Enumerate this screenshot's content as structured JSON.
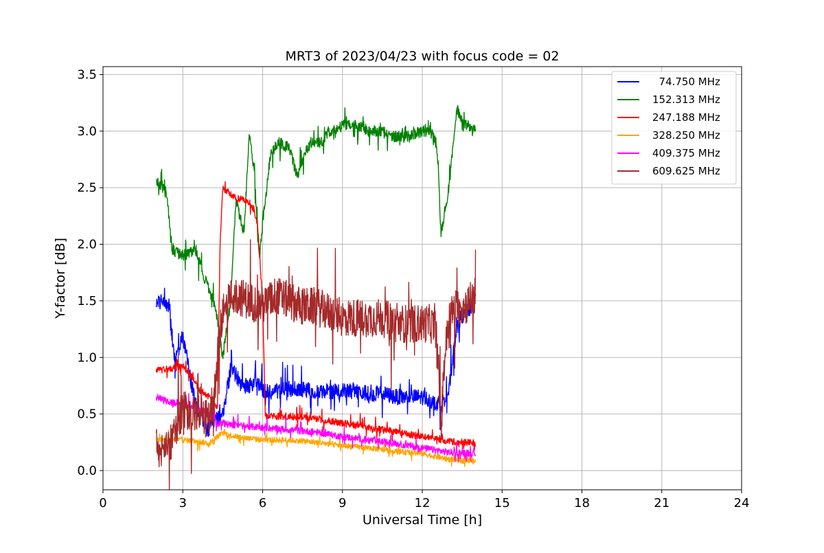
{
  "chart_data": {
    "type": "line",
    "title": "MRT3 of 2023/04/23 with focus code = 02",
    "xlabel": "Universal Time [h]",
    "ylabel": "Y-factor [dB]",
    "xlim": [
      0,
      24
    ],
    "ylim": [
      -0.17,
      3.57
    ],
    "xticks": [
      0,
      3,
      6,
      9,
      12,
      15,
      18,
      21,
      24
    ],
    "yticks": [
      0.0,
      0.5,
      1.0,
      1.5,
      2.0,
      2.5,
      3.0,
      3.5
    ],
    "xtick_labels": [
      "0",
      "3",
      "6",
      "9",
      "12",
      "15",
      "18",
      "21",
      "24"
    ],
    "ytick_labels": [
      "0.0",
      "0.5",
      "1.0",
      "1.5",
      "2.0",
      "2.5",
      "3.0",
      "3.5"
    ],
    "grid": true,
    "legend_position": "top-right",
    "series": [
      {
        "name": "  74.750 MHz",
        "color": "#0000ff",
        "noise": 0.07,
        "x": [
          2.0,
          2.2,
          2.5,
          2.6,
          2.7,
          3.0,
          3.3,
          3.5,
          3.7,
          3.9,
          4.2,
          4.5,
          4.8,
          5.0,
          5.2,
          5.5,
          5.8,
          6.0,
          6.5,
          7.0,
          7.5,
          8.0,
          8.5,
          9.0,
          9.5,
          10.0,
          10.5,
          11.0,
          11.5,
          12.0,
          12.5,
          12.7,
          13.0,
          13.3,
          13.6,
          13.9,
          14.0
        ],
        "y": [
          1.48,
          1.5,
          1.45,
          1.15,
          0.95,
          1.2,
          0.8,
          0.55,
          0.5,
          0.35,
          0.45,
          0.5,
          0.9,
          0.85,
          0.75,
          0.75,
          0.8,
          0.7,
          0.7,
          0.72,
          0.72,
          0.7,
          0.7,
          0.7,
          0.7,
          0.68,
          0.68,
          0.65,
          0.65,
          0.65,
          0.6,
          0.6,
          0.7,
          1.3,
          1.4,
          1.45,
          1.6
        ]
      },
      {
        "name": "152.313 MHz",
        "color": "#008000",
        "noise": 0.05,
        "x": [
          2.0,
          2.3,
          2.4,
          2.6,
          3.0,
          3.5,
          3.8,
          4.0,
          4.3,
          4.5,
          4.8,
          5.0,
          5.3,
          5.5,
          5.7,
          5.8,
          5.9,
          6.0,
          6.3,
          6.6,
          7.0,
          7.3,
          7.5,
          7.8,
          8.2,
          8.5,
          9.0,
          9.5,
          10.0,
          10.5,
          11.0,
          11.5,
          12.0,
          12.3,
          12.5,
          12.6,
          12.7,
          13.0,
          13.3,
          13.5,
          13.7,
          14.0
        ],
        "y": [
          2.55,
          2.5,
          2.45,
          1.95,
          1.9,
          1.95,
          1.7,
          1.6,
          1.35,
          1.0,
          1.5,
          2.4,
          2.1,
          3.0,
          2.6,
          2.1,
          1.9,
          2.2,
          2.8,
          2.9,
          2.85,
          2.6,
          2.75,
          2.9,
          2.9,
          3.0,
          3.05,
          3.05,
          3.0,
          3.0,
          2.95,
          2.95,
          3.0,
          3.0,
          2.9,
          2.7,
          2.1,
          2.5,
          3.2,
          3.1,
          3.05,
          3.0
        ]
      },
      {
        "name": "247.188 MHz",
        "color": "#ff0000",
        "noise": 0.03,
        "x": [
          2.0,
          2.5,
          3.0,
          3.3,
          3.6,
          4.0,
          4.3,
          4.4,
          4.5,
          4.8,
          5.0,
          5.3,
          5.6,
          5.8,
          6.0,
          6.1,
          6.5,
          7.0,
          8.0,
          9.0,
          10.0,
          11.0,
          12.0,
          13.0,
          14.0
        ],
        "y": [
          0.88,
          0.9,
          0.92,
          0.85,
          0.72,
          0.65,
          0.55,
          2.0,
          2.5,
          2.45,
          2.4,
          2.4,
          2.35,
          2.2,
          1.5,
          0.48,
          0.48,
          0.48,
          0.46,
          0.42,
          0.38,
          0.34,
          0.3,
          0.26,
          0.24
        ]
      },
      {
        "name": "328.250 MHz",
        "color": "#ffa500",
        "noise": 0.025,
        "x": [
          2.0,
          2.5,
          3.0,
          3.5,
          4.0,
          4.3,
          4.5,
          5.0,
          6.0,
          7.0,
          8.0,
          9.0,
          10.0,
          11.0,
          12.0,
          13.0,
          14.0
        ],
        "y": [
          0.28,
          0.28,
          0.27,
          0.26,
          0.24,
          0.3,
          0.33,
          0.3,
          0.27,
          0.27,
          0.25,
          0.22,
          0.2,
          0.17,
          0.15,
          0.1,
          0.08
        ]
      },
      {
        "name": "409.375 MHz",
        "color": "#ff00ff",
        "noise": 0.03,
        "x": [
          2.0,
          2.5,
          3.0,
          3.5,
          4.0,
          4.3,
          4.5,
          5.0,
          6.0,
          7.0,
          8.0,
          9.0,
          10.0,
          11.0,
          12.0,
          13.0,
          14.0
        ],
        "y": [
          0.65,
          0.6,
          0.6,
          0.55,
          0.5,
          0.42,
          0.42,
          0.4,
          0.38,
          0.36,
          0.34,
          0.3,
          0.27,
          0.24,
          0.2,
          0.16,
          0.15
        ]
      },
      {
        "name": "609.625 MHz",
        "color": "#a52a2a",
        "noise": 0.17,
        "x": [
          2.0,
          2.3,
          2.6,
          3.0,
          3.5,
          4.0,
          4.2,
          4.4,
          4.6,
          5.0,
          5.5,
          6.0,
          6.5,
          7.0,
          7.5,
          8.0,
          8.5,
          9.0,
          9.5,
          10.0,
          10.5,
          11.0,
          11.5,
          12.0,
          12.3,
          12.5,
          12.6,
          12.7,
          12.8,
          13.0,
          13.3,
          13.6,
          14.0
        ],
        "y": [
          0.2,
          0.18,
          0.25,
          0.55,
          0.5,
          0.45,
          0.7,
          1.25,
          1.5,
          1.55,
          1.5,
          1.45,
          1.55,
          1.5,
          1.45,
          1.45,
          1.4,
          1.35,
          1.35,
          1.35,
          1.35,
          1.3,
          1.3,
          1.3,
          1.3,
          1.25,
          1.0,
          0.3,
          0.9,
          1.35,
          1.45,
          1.45,
          1.55
        ]
      }
    ]
  }
}
